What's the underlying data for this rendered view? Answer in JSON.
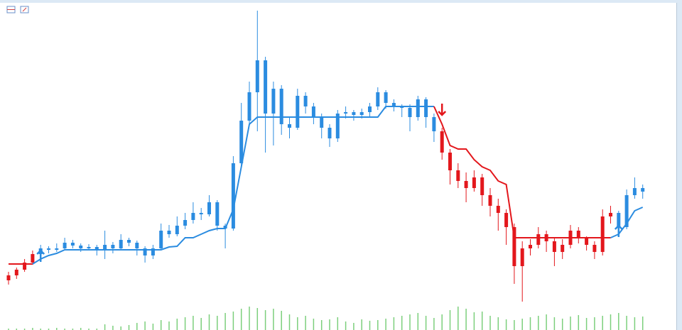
{
  "chart_data": {
    "type": "candlestick",
    "ylim": [
      0,
      465
    ],
    "candles": [
      [
        70,
        82,
        64,
        77
      ],
      [
        77,
        88,
        72,
        85
      ],
      [
        85,
        100,
        82,
        95
      ],
      [
        95,
        112,
        92,
        107
      ],
      [
        107,
        120,
        104,
        115
      ],
      [
        115,
        118,
        108,
        113
      ],
      [
        113,
        122,
        110,
        115
      ],
      [
        115,
        130,
        112,
        123
      ],
      [
        123,
        127,
        115,
        119
      ],
      [
        119,
        122,
        110,
        115
      ],
      [
        115,
        121,
        112,
        117
      ],
      [
        117,
        120,
        105,
        113
      ],
      [
        113,
        140,
        100,
        120
      ],
      [
        120,
        124,
        108,
        115
      ],
      [
        115,
        135,
        112,
        127
      ],
      [
        127,
        130,
        118,
        123
      ],
      [
        123,
        126,
        105,
        115
      ],
      [
        115,
        118,
        95,
        105
      ],
      [
        105,
        120,
        100,
        115
      ],
      [
        115,
        150,
        112,
        140
      ],
      [
        140,
        148,
        130,
        135
      ],
      [
        135,
        160,
        132,
        147
      ],
      [
        147,
        165,
        142,
        155
      ],
      [
        155,
        180,
        150,
        165
      ],
      [
        165,
        172,
        155,
        163
      ],
      [
        163,
        190,
        160,
        180
      ],
      [
        180,
        183,
        140,
        147
      ],
      [
        147,
        150,
        115,
        143
      ],
      [
        143,
        245,
        140,
        235
      ],
      [
        235,
        320,
        230,
        295
      ],
      [
        295,
        350,
        290,
        335
      ],
      [
        335,
        450,
        280,
        380
      ],
      [
        380,
        385,
        250,
        305
      ],
      [
        305,
        350,
        260,
        340
      ],
      [
        340,
        345,
        275,
        290
      ],
      [
        290,
        300,
        270,
        285
      ],
      [
        285,
        340,
        282,
        330
      ],
      [
        330,
        335,
        305,
        315
      ],
      [
        315,
        320,
        290,
        300
      ],
      [
        300,
        305,
        270,
        285
      ],
      [
        285,
        290,
        258,
        270
      ],
      [
        270,
        310,
        265,
        305
      ],
      [
        305,
        315,
        298,
        307
      ],
      [
        307,
        310,
        295,
        303
      ],
      [
        303,
        312,
        298,
        307
      ],
      [
        307,
        320,
        300,
        315
      ],
      [
        315,
        342,
        310,
        335
      ],
      [
        335,
        338,
        312,
        320
      ],
      [
        320,
        325,
        308,
        315
      ],
      [
        315,
        318,
        300,
        313
      ],
      [
        313,
        318,
        280,
        300
      ],
      [
        300,
        330,
        295,
        325
      ],
      [
        325,
        328,
        285,
        300
      ],
      [
        300,
        305,
        265,
        280
      ],
      [
        280,
        285,
        240,
        250
      ],
      [
        250,
        255,
        205,
        225
      ],
      [
        225,
        235,
        200,
        210
      ],
      [
        210,
        222,
        180,
        200
      ],
      [
        200,
        225,
        195,
        215
      ],
      [
        215,
        220,
        175,
        190
      ],
      [
        190,
        200,
        160,
        175
      ],
      [
        175,
        185,
        140,
        165
      ],
      [
        165,
        170,
        120,
        145
      ],
      [
        145,
        150,
        65,
        90
      ],
      [
        90,
        125,
        40,
        115
      ],
      [
        115,
        128,
        105,
        120
      ],
      [
        120,
        145,
        115,
        135
      ],
      [
        135,
        140,
        110,
        125
      ],
      [
        125,
        130,
        90,
        110
      ],
      [
        110,
        128,
        100,
        120
      ],
      [
        120,
        148,
        115,
        140
      ],
      [
        140,
        145,
        122,
        130
      ],
      [
        130,
        132,
        112,
        120
      ],
      [
        120,
        125,
        100,
        110
      ],
      [
        110,
        170,
        105,
        160
      ],
      [
        160,
        175,
        150,
        165
      ],
      [
        165,
        168,
        140,
        145
      ],
      [
        145,
        198,
        142,
        190
      ],
      [
        190,
        215,
        185,
        200
      ],
      [
        200,
        205,
        185,
        195
      ]
    ],
    "stop": [
      93,
      93,
      93,
      93,
      100,
      105,
      108,
      113,
      113,
      113,
      113,
      113,
      113,
      113,
      113,
      113,
      113,
      113,
      113,
      113,
      117,
      118,
      130,
      130,
      135,
      140,
      143,
      143,
      170,
      230,
      290,
      300,
      300,
      300,
      300,
      300,
      300,
      300,
      300,
      300,
      300,
      300,
      300,
      300,
      300,
      300,
      300,
      315,
      315,
      315,
      315,
      315,
      315,
      315,
      290,
      260,
      255,
      255,
      240,
      230,
      225,
      210,
      205,
      130,
      130,
      130,
      130,
      130,
      130,
      130,
      130,
      130,
      130,
      130,
      130,
      130,
      135,
      150,
      168,
      173
    ],
    "colors": [
      "#e3171c",
      "#e3171c",
      "#e3171c",
      "#e3171c",
      "#2b8ce0",
      "#2b8ce0",
      "#2b8ce0",
      "#2b8ce0",
      "#2b8ce0",
      "#2b8ce0",
      "#2b8ce0",
      "#2b8ce0",
      "#2b8ce0",
      "#2b8ce0",
      "#2b8ce0",
      "#2b8ce0",
      "#2b8ce0",
      "#2b8ce0",
      "#2b8ce0",
      "#2b8ce0",
      "#2b8ce0",
      "#2b8ce0",
      "#2b8ce0",
      "#2b8ce0",
      "#2b8ce0",
      "#2b8ce0",
      "#2b8ce0",
      "#2b8ce0",
      "#2b8ce0",
      "#2b8ce0",
      "#2b8ce0",
      "#2b8ce0",
      "#2b8ce0",
      "#2b8ce0",
      "#2b8ce0",
      "#2b8ce0",
      "#2b8ce0",
      "#2b8ce0",
      "#2b8ce0",
      "#2b8ce0",
      "#2b8ce0",
      "#2b8ce0",
      "#2b8ce0",
      "#2b8ce0",
      "#2b8ce0",
      "#2b8ce0",
      "#2b8ce0",
      "#2b8ce0",
      "#2b8ce0",
      "#2b8ce0",
      "#2b8ce0",
      "#2b8ce0",
      "#2b8ce0",
      "#2b8ce0",
      "#e3171c",
      "#e3171c",
      "#e3171c",
      "#e3171c",
      "#e3171c",
      "#e3171c",
      "#e3171c",
      "#e3171c",
      "#e3171c",
      "#e3171c",
      "#e3171c",
      "#e3171c",
      "#e3171c",
      "#e3171c",
      "#e3171c",
      "#e3171c",
      "#e3171c",
      "#e3171c",
      "#e3171c",
      "#e3171c",
      "#e3171c",
      "#e3171c",
      "#2b8ce0",
      "#2b8ce0",
      "#2b8ce0",
      "#2b8ce0"
    ],
    "up_arrows": [
      4,
      76
    ],
    "down_arrows": [
      54
    ],
    "volume_color": "#7ccf7c",
    "vlim": [
      0,
      40
    ],
    "volume": [
      2,
      2,
      2,
      3,
      2,
      2,
      3,
      2,
      2,
      3,
      2,
      2,
      8,
      6,
      5,
      7,
      10,
      12,
      9,
      14,
      12,
      16,
      18,
      20,
      17,
      22,
      20,
      24,
      26,
      30,
      33,
      31,
      28,
      30,
      27,
      22,
      18,
      20,
      16,
      14,
      15,
      18,
      12,
      10,
      15,
      13,
      14,
      16,
      18,
      20,
      22,
      24,
      20,
      17,
      22,
      28,
      33,
      30,
      25,
      26,
      20,
      18,
      15,
      14,
      16,
      18,
      20,
      22,
      18,
      16,
      19,
      21,
      17,
      18,
      20,
      22,
      24,
      20,
      18,
      19
    ]
  }
}
